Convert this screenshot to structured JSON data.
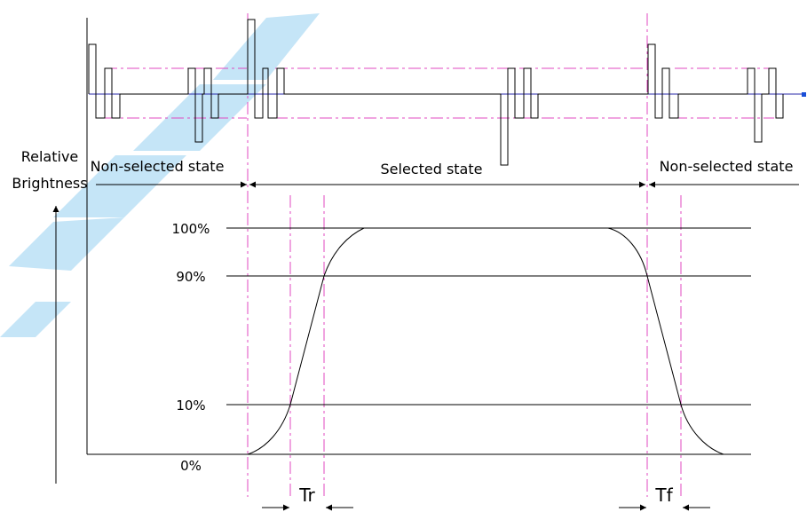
{
  "labels": {
    "y_axis_line1": "Relative",
    "y_axis_line2": "Brightness",
    "non_selected_left": "Non-selected state",
    "selected": "Selected state",
    "non_selected_right": "Non-selected state",
    "level_100": "100%",
    "level_90": "90%",
    "level_10": "10%",
    "level_0": "0%",
    "rise_time": "Tr",
    "fall_time": "Tf"
  },
  "colors": {
    "guide_lines": "#e04ac0",
    "baseline": "#2a2aa8",
    "curves": "#000000",
    "watermark": "#7fc6ee"
  }
}
